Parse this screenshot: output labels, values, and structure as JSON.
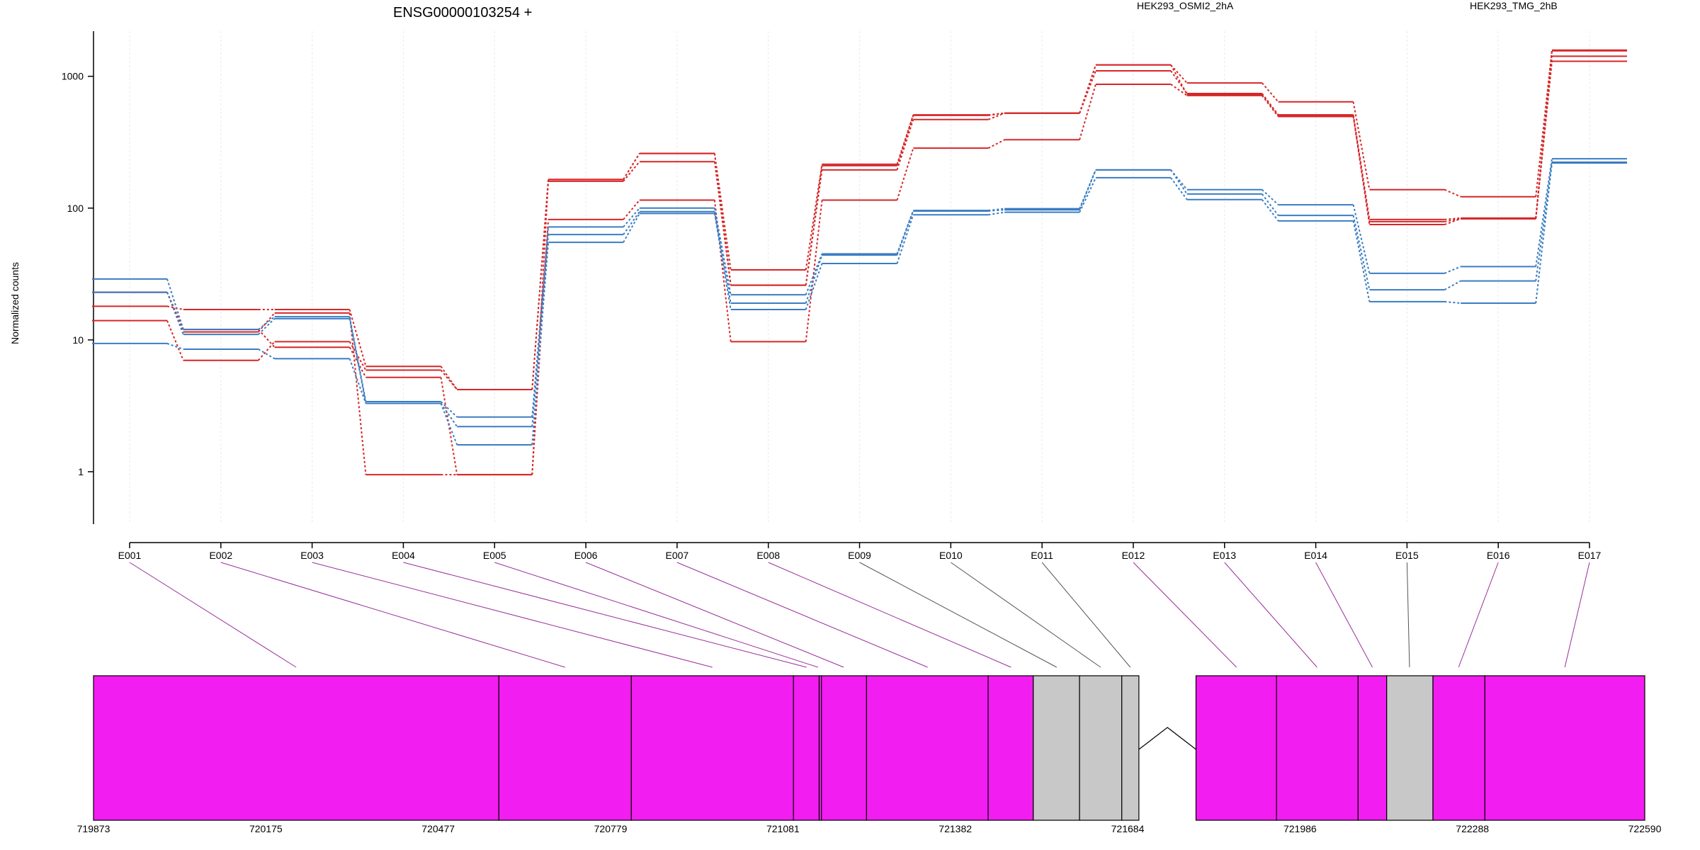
{
  "chart_data": {
    "type": "line",
    "title": "ENSG00000103254 +",
    "ylabel": "Normalized counts",
    "y_scale": "log",
    "ylim": [
      0.4,
      2200
    ],
    "y_ticks": [
      {
        "value": 1,
        "label": "1"
      },
      {
        "value": 10,
        "label": "10"
      },
      {
        "value": 100,
        "label": "100"
      },
      {
        "value": 1000,
        "label": "1000"
      }
    ],
    "categories": [
      "E001",
      "E002",
      "E003",
      "E004",
      "E005",
      "E006",
      "E007",
      "E008",
      "E009",
      "E010",
      "E011",
      "E012",
      "E013",
      "E014",
      "E015",
      "E016",
      "E017"
    ],
    "grid": "vertical dotted",
    "legend": [
      {
        "label": "HEK293_OSMI2_2hA",
        "color": "#d62728"
      },
      {
        "label": "HEK293_TMG_2hB",
        "color": "#3a7dc2"
      }
    ],
    "series": [
      {
        "group": "HEK293_OSMI2_2hA",
        "color": "#d62728",
        "values": [
          18,
          17,
          17,
          6.3,
          4.2,
          165,
          260,
          34,
          215,
          510,
          525,
          1220,
          890,
          640,
          138,
          122,
          1580
        ]
      },
      {
        "group": "HEK293_OSMI2_2hA",
        "color": "#d62728",
        "values": [
          14,
          7,
          9.7,
          5.9,
          4.2,
          160,
          225,
          26,
          195,
          470,
          525,
          1100,
          740,
          510,
          82,
          84,
          1420
        ]
      },
      {
        "group": "HEK293_OSMI2_2hA",
        "color": "#d62728",
        "values": [
          23,
          12,
          8.8,
          5.2,
          0.95,
          82,
          115,
          9.7,
          115,
          285,
          330,
          870,
          715,
          495,
          75,
          83,
          1300
        ]
      },
      {
        "group": "HEK293_OSMI2_2hA",
        "color": "#d62728",
        "values": [
          23,
          11.5,
          16,
          0.95,
          0.95,
          165,
          260,
          26,
          210,
          505,
          525,
          1220,
          730,
          505,
          79,
          83,
          1560
        ]
      },
      {
        "group": "HEK293_TMG_2hB",
        "color": "#3a7dc2",
        "values": [
          29,
          12,
          15,
          3.4,
          2.6,
          72,
          100,
          22,
          45,
          96,
          99,
          195,
          138,
          106,
          32,
          36,
          237
        ]
      },
      {
        "group": "HEK293_TMG_2hB",
        "color": "#3a7dc2",
        "values": [
          23,
          11,
          14.5,
          3.3,
          2.2,
          63,
          94,
          19,
          44,
          95,
          97,
          195,
          128,
          88,
          24,
          28,
          223
        ]
      },
      {
        "group": "HEK293_TMG_2hB",
        "color": "#3a7dc2",
        "values": [
          9.4,
          8.5,
          7.2,
          3.3,
          1.6,
          55,
          91,
          17,
          38,
          89,
          93,
          170,
          116,
          80,
          19.5,
          19,
          220
        ]
      }
    ],
    "gene_model": {
      "coordinate_ticks": [
        "719873",
        "720175",
        "720477",
        "720779",
        "721081",
        "721382",
        "721684",
        "721986",
        "722288",
        "722590"
      ],
      "coordinate_range": [
        719873,
        722590
      ],
      "colors": {
        "tested": "#f21df0",
        "not_tested": "#c8c8c8"
      },
      "exon_blocks": [
        {
          "start": 719873,
          "end": 720583,
          "status": "tested"
        },
        {
          "start": 720583,
          "end": 720815,
          "status": "tested"
        },
        {
          "start": 720815,
          "end": 721099,
          "status": "tested"
        },
        {
          "start": 721099,
          "end": 721144,
          "status": "tested"
        },
        {
          "start": 721144,
          "end": 721148,
          "status": "tested"
        },
        {
          "start": 721148,
          "end": 721227,
          "status": "tested"
        },
        {
          "start": 721227,
          "end": 721440,
          "status": "tested"
        },
        {
          "start": 721440,
          "end": 721519,
          "status": "tested"
        },
        {
          "start": 721519,
          "end": 721600,
          "status": "not_tested"
        },
        {
          "start": 721600,
          "end": 721674,
          "status": "not_tested"
        },
        {
          "start": 721674,
          "end": 721704,
          "status": "not_tested"
        },
        {
          "start": 721804,
          "end": 721945,
          "status": "tested"
        },
        {
          "start": 721945,
          "end": 722088,
          "status": "tested"
        },
        {
          "start": 722088,
          "end": 722138,
          "status": "tested"
        },
        {
          "start": 722138,
          "end": 722219,
          "status": "not_tested"
        },
        {
          "start": 722219,
          "end": 722310,
          "status": "tested"
        },
        {
          "start": 722310,
          "end": 722590,
          "status": "tested"
        }
      ],
      "intron": {
        "start": 721704,
        "end": 721804
      },
      "exon_map": [
        {
          "bin": "E001",
          "coord": 720228,
          "tested": true
        },
        {
          "bin": "E002",
          "coord": 720699,
          "tested": true
        },
        {
          "bin": "E003",
          "coord": 720957,
          "tested": true
        },
        {
          "bin": "E004",
          "coord": 721122,
          "tested": true
        },
        {
          "bin": "E005",
          "coord": 721142,
          "tested": true
        },
        {
          "bin": "E006",
          "coord": 721187,
          "tested": true
        },
        {
          "bin": "E007",
          "coord": 721334,
          "tested": true
        },
        {
          "bin": "E008",
          "coord": 721480,
          "tested": true
        },
        {
          "bin": "E009",
          "coord": 721560,
          "tested": false
        },
        {
          "bin": "E010",
          "coord": 721637,
          "tested": false
        },
        {
          "bin": "E011",
          "coord": 721689,
          "tested": false
        },
        {
          "bin": "E012",
          "coord": 721875,
          "tested": true
        },
        {
          "bin": "E013",
          "coord": 722016,
          "tested": true
        },
        {
          "bin": "E014",
          "coord": 722113,
          "tested": true
        },
        {
          "bin": "E015",
          "coord": 722178,
          "tested": false
        },
        {
          "bin": "E016",
          "coord": 722264,
          "tested": true
        },
        {
          "bin": "E017",
          "coord": 722450,
          "tested": true
        }
      ]
    }
  }
}
